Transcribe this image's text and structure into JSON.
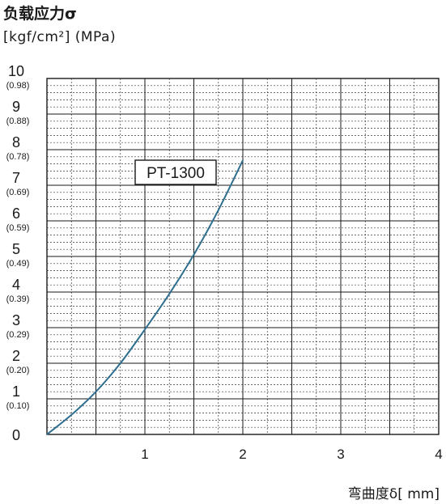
{
  "chart_data": {
    "type": "line",
    "ylabel": "负载应力σ",
    "ylabel_units": "[kgf/cm²]  (MPa)",
    "xlabel": "弯曲度δ[ mm]",
    "xlim": [
      0,
      4
    ],
    "ylim": [
      0,
      10
    ],
    "x_ticks": [
      "1",
      "2",
      "3",
      "4"
    ],
    "y_ticks": [
      {
        "main": "10",
        "sub": "(0.98)"
      },
      {
        "main": "9",
        "sub": "(0.88)"
      },
      {
        "main": "8",
        "sub": "(0.78)"
      },
      {
        "main": "7",
        "sub": "(0.69)"
      },
      {
        "main": "6",
        "sub": "(0.59)"
      },
      {
        "main": "5",
        "sub": "(0.49)"
      },
      {
        "main": "4",
        "sub": "(0.39)"
      },
      {
        "main": "3",
        "sub": "(0.29)"
      },
      {
        "main": "2",
        "sub": "(0.20)"
      },
      {
        "main": "1",
        "sub": "(0.10)"
      },
      {
        "main": "0",
        "sub": ""
      }
    ],
    "grid": true,
    "series": [
      {
        "name": "PT-1300",
        "color": "#2e6e8e",
        "x": [
          0,
          0.25,
          0.5,
          0.75,
          1.0,
          1.25,
          1.5,
          1.75,
          2.0
        ],
        "y": [
          0,
          0.55,
          1.2,
          2.0,
          2.95,
          3.95,
          5.05,
          6.3,
          7.7
        ]
      }
    ]
  }
}
